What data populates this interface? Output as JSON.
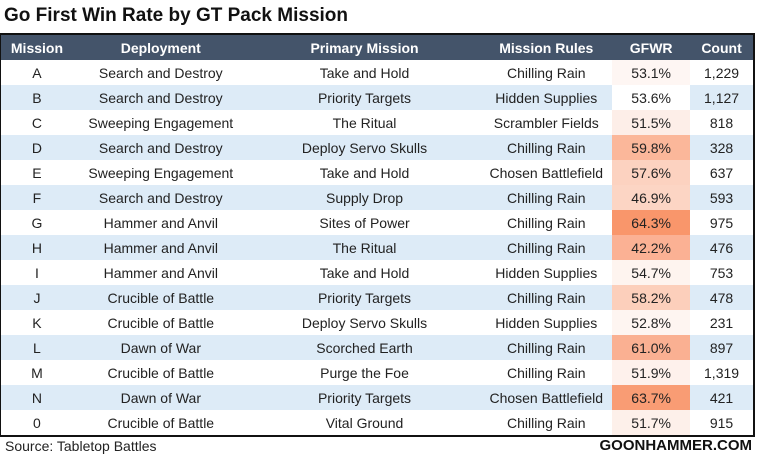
{
  "title": "Go First Win Rate by GT Pack Mission",
  "columns": [
    "Mission",
    "Deployment",
    "Primary Mission",
    "Mission Rules",
    "GFWR",
    "Count"
  ],
  "rows": [
    {
      "mission": "A",
      "deployment": "Search and Destroy",
      "primary": "Take and Hold",
      "rules": "Chilling Rain",
      "gfwr": "53.1%",
      "count": "1,229",
      "heat": "#FEF6F3"
    },
    {
      "mission": "B",
      "deployment": "Search and Destroy",
      "primary": "Priority Targets",
      "rules": "Hidden Supplies",
      "gfwr": "53.6%",
      "count": "1,127",
      "heat": "#FFFFFF"
    },
    {
      "mission": "C",
      "deployment": "Sweeping Engagement",
      "primary": "The Ritual",
      "rules": "Scrambler Fields",
      "gfwr": "51.5%",
      "count": "818",
      "heat": "#FDEEE8"
    },
    {
      "mission": "D",
      "deployment": "Search and Destroy",
      "primary": "Deploy Servo Skulls",
      "rules": "Chilling Rain",
      "gfwr": "59.8%",
      "count": "328",
      "heat": "#FBB79A"
    },
    {
      "mission": "E",
      "deployment": "Sweeping Engagement",
      "primary": "Take and Hold",
      "rules": "Chosen Battlefield",
      "gfwr": "57.6%",
      "count": "637",
      "heat": "#FCD2C0"
    },
    {
      "mission": "F",
      "deployment": "Search and Destroy",
      "primary": "Supply Drop",
      "rules": "Chilling Rain",
      "gfwr": "46.9%",
      "count": "593",
      "heat": "#FCD5C4"
    },
    {
      "mission": "G",
      "deployment": "Hammer and Anvil",
      "primary": "Sites of Power",
      "rules": "Chilling Rain",
      "gfwr": "64.3%",
      "count": "975",
      "heat": "#F9966B"
    },
    {
      "mission": "H",
      "deployment": "Hammer and Anvil",
      "primary": "The Ritual",
      "rules": "Chilling Rain",
      "gfwr": "42.2%",
      "count": "476",
      "heat": "#FBB194"
    },
    {
      "mission": "I",
      "deployment": "Hammer and Anvil",
      "primary": "Take and Hold",
      "rules": "Hidden Supplies",
      "gfwr": "54.7%",
      "count": "753",
      "heat": "#FEF4EF"
    },
    {
      "mission": "J",
      "deployment": "Crucible of Battle",
      "primary": "Priority Targets",
      "rules": "Chilling Rain",
      "gfwr": "58.2%",
      "count": "478",
      "heat": "#FCCFBB"
    },
    {
      "mission": "K",
      "deployment": "Crucible of Battle",
      "primary": "Deploy Servo Skulls",
      "rules": "Hidden Supplies",
      "gfwr": "52.8%",
      "count": "231",
      "heat": "#FEF5F1"
    },
    {
      "mission": "L",
      "deployment": "Dawn of War",
      "primary": "Scorched Earth",
      "rules": "Chilling Rain",
      "gfwr": "61.0%",
      "count": "897",
      "heat": "#FAB092"
    },
    {
      "mission": "M",
      "deployment": "Crucible of Battle",
      "primary": "Purge the Foe",
      "rules": "Chilling Rain",
      "gfwr": "51.9%",
      "count": "1,319",
      "heat": "#FEF1EC"
    },
    {
      "mission": "N",
      "deployment": "Dawn of War",
      "primary": "Priority Targets",
      "rules": "Chosen Battlefield",
      "gfwr": "63.7%",
      "count": "421",
      "heat": "#F99C74"
    },
    {
      "mission": "0",
      "deployment": "Crucible of Battle",
      "primary": "Vital Ground",
      "rules": "Chilling Rain",
      "gfwr": "51.7%",
      "count": "915",
      "heat": "#FDF0EA"
    }
  ],
  "source": "Source: Tabletop Battles",
  "brand": "GOONHAMMER.COM",
  "colors": {
    "header_bg": "#44546A",
    "alt_row": "#DDEBF7"
  }
}
